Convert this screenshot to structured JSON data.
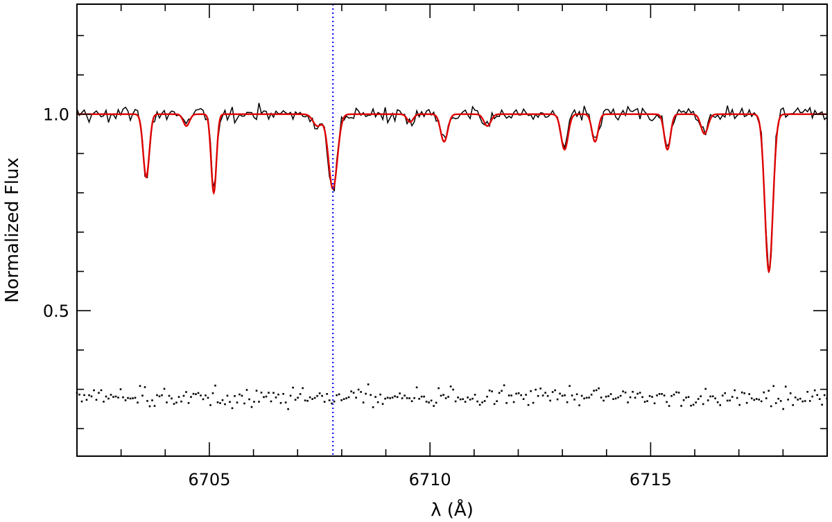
{
  "chart_data": {
    "type": "line",
    "title": "",
    "xlabel": "λ (Å)",
    "ylabel": "Normalized Flux",
    "xlim": [
      6702.0,
      6719.0
    ],
    "ylim": [
      0.13,
      1.28
    ],
    "x_ticks": [
      6705,
      6710,
      6715
    ],
    "x_tick_labels": [
      "6705",
      "6710",
      "6715"
    ],
    "y_ticks": [
      0.5,
      1.0
    ],
    "y_tick_labels": [
      "0.5",
      "1.0"
    ],
    "grid": false,
    "legend": "none",
    "colors": {
      "observed": "#000000",
      "model": "#dd0000",
      "marker": "#1a1aff",
      "residuals": "#000000"
    },
    "vertical_marker": {
      "x": 6707.8,
      "style": "dotted"
    },
    "continuum": 1.0,
    "lines": [
      {
        "center": 6703.57,
        "depth": 0.16,
        "width": 0.07
      },
      {
        "center": 6704.48,
        "depth": 0.03,
        "width": 0.07
      },
      {
        "center": 6705.1,
        "depth": 0.2,
        "width": 0.06
      },
      {
        "center": 6707.45,
        "depth": 0.03,
        "width": 0.1
      },
      {
        "center": 6707.8,
        "depth": 0.19,
        "width": 0.1
      },
      {
        "center": 6709.55,
        "depth": 0.02,
        "width": 0.07
      },
      {
        "center": 6710.32,
        "depth": 0.07,
        "width": 0.08
      },
      {
        "center": 6711.3,
        "depth": 0.03,
        "width": 0.08
      },
      {
        "center": 6713.05,
        "depth": 0.09,
        "width": 0.08
      },
      {
        "center": 6713.74,
        "depth": 0.07,
        "width": 0.07
      },
      {
        "center": 6715.38,
        "depth": 0.09,
        "width": 0.07
      },
      {
        "center": 6716.22,
        "depth": 0.05,
        "width": 0.08
      },
      {
        "center": 6717.68,
        "depth": 0.4,
        "width": 0.09
      }
    ],
    "series": [
      {
        "name": "",
        "kind": "observed"
      },
      {
        "name": "",
        "kind": "model"
      },
      {
        "name": "",
        "kind": "residuals",
        "offset": 0.28,
        "scatter": 0.025
      }
    ]
  }
}
